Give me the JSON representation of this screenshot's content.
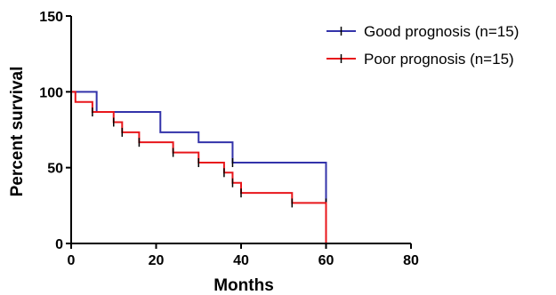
{
  "chart_data": {
    "type": "line",
    "subtype": "kaplan-meier-step",
    "xlabel": "Months",
    "ylabel": "Percent survival",
    "xlim": [
      0,
      80
    ],
    "ylim": [
      0,
      150
    ],
    "x_ticks": [
      0,
      20,
      40,
      60,
      80
    ],
    "y_ticks": [
      0,
      50,
      100,
      150
    ],
    "grid": false,
    "legend_position": "top-right",
    "series": [
      {
        "name": "Good prognosis (n=15)",
        "color": "#3333aa",
        "steps": [
          {
            "x": 0,
            "y": 100
          },
          {
            "x": 6,
            "y": 86.7
          },
          {
            "x": 21,
            "y": 73.3
          },
          {
            "x": 30,
            "y": 66.7
          },
          {
            "x": 38,
            "y": 53.3
          },
          {
            "x": 60,
            "y": 26.7
          }
        ],
        "censored": [
          {
            "x": 38,
            "y": 53.3
          },
          {
            "x": 60,
            "y": 26.7
          }
        ]
      },
      {
        "name": "Poor prognosis (n=15)",
        "color": "#e8161b",
        "steps": [
          {
            "x": 0,
            "y": 100
          },
          {
            "x": 1,
            "y": 93.3
          },
          {
            "x": 5,
            "y": 86.7
          },
          {
            "x": 10,
            "y": 80
          },
          {
            "x": 12,
            "y": 73.3
          },
          {
            "x": 16,
            "y": 66.7
          },
          {
            "x": 24,
            "y": 60
          },
          {
            "x": 30,
            "y": 53.3
          },
          {
            "x": 36,
            "y": 46.7
          },
          {
            "x": 38,
            "y": 40
          },
          {
            "x": 40,
            "y": 33.3
          },
          {
            "x": 52,
            "y": 26.7
          },
          {
            "x": 60,
            "y": 0
          }
        ],
        "censored": [
          {
            "x": 5,
            "y": 86.7
          },
          {
            "x": 10,
            "y": 80
          },
          {
            "x": 12,
            "y": 73.3
          },
          {
            "x": 16,
            "y": 66.7
          },
          {
            "x": 24,
            "y": 60
          },
          {
            "x": 30,
            "y": 53.3
          },
          {
            "x": 36,
            "y": 46.7
          },
          {
            "x": 38,
            "y": 40
          },
          {
            "x": 40,
            "y": 33.3
          },
          {
            "x": 52,
            "y": 26.7
          }
        ]
      }
    ]
  }
}
